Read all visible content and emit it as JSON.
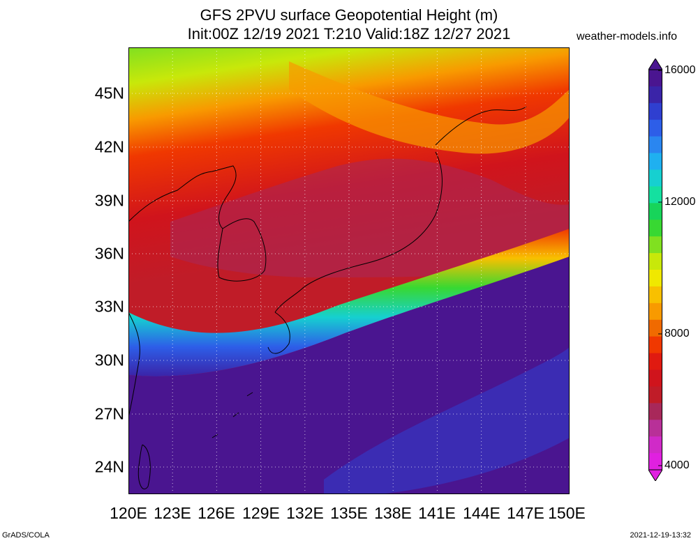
{
  "header": {
    "title_line1": "GFS 2PVU surface Geopotential Height (m)",
    "title_line2": "Init:00Z 12/19 2021 T:210 Valid:18Z 12/27 2021",
    "site": "weather-models.info"
  },
  "map": {
    "lat_labels": [
      "45N",
      "42N",
      "39N",
      "36N",
      "33N",
      "30N",
      "27N",
      "24N"
    ],
    "lon_labels": [
      "120E",
      "123E",
      "126E",
      "129E",
      "132E",
      "135E",
      "138E",
      "141E",
      "144E",
      "147E",
      "150E"
    ]
  },
  "colorbar": {
    "labels": [
      "16000",
      "12000",
      "8000",
      "4000"
    ],
    "colors": [
      "#4a1590",
      "#3a24a8",
      "#2f3fd0",
      "#2d5ee8",
      "#2a86f0",
      "#1fb0f0",
      "#16d0d0",
      "#14e0a0",
      "#17d45a",
      "#38d832",
      "#80e020",
      "#c8e80a",
      "#f0e800",
      "#f8c000",
      "#f89a00",
      "#f06a00",
      "#f03800",
      "#e01a10",
      "#d0141c",
      "#c01c28",
      "#a8285a",
      "#b83098",
      "#d02ac8",
      "#e020e0"
    ]
  },
  "footer": {
    "left": "GrADS/COLA",
    "right": "2021-12-19-13:32"
  }
}
